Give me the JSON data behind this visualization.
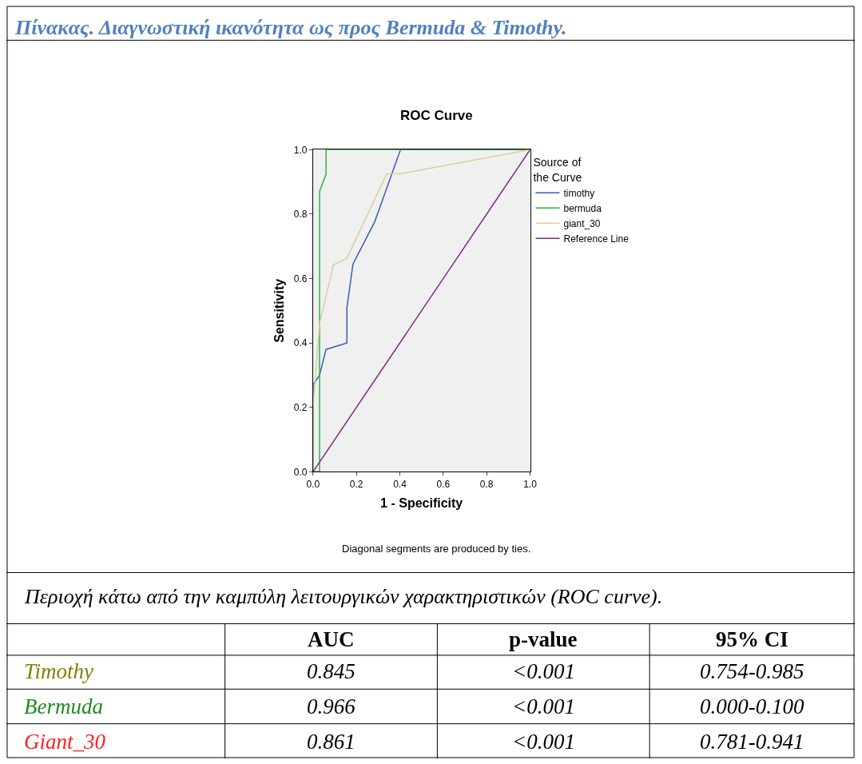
{
  "chart_data": {
    "type": "line",
    "title": "Πίνακας. Διαγνωστική ικανότητα ως προς Bermuda & Timothy.",
    "subtitle": "ROC Curve",
    "xlabel": "1 - Specificity",
    "ylabel": "Sensitivity",
    "legend_title": "Source of the Curve",
    "xlim": [
      0,
      1
    ],
    "ylim": [
      0,
      1
    ],
    "xticks": [
      {
        "value": 0,
        "label": "0.0"
      },
      0.2,
      0.4,
      0.6,
      0.8,
      {
        "value": 1,
        "label": "1.0"
      }
    ],
    "yticks": [
      {
        "value": 0,
        "label": "0.0"
      },
      0.2,
      0.4,
      0.6,
      0.8,
      {
        "value": 1,
        "label": "1.0"
      }
    ],
    "grid": false,
    "legend": "right",
    "marker": "none",
    "line_style": "solid",
    "series": [
      {
        "name": "timothy",
        "color": "#3b5bb5",
        "x": [
          0,
          0,
          0.03,
          0.06,
          0.156,
          0.156,
          0.184,
          0.284,
          0.403,
          1
        ],
        "values": [
          0,
          0.27,
          0.3,
          0.38,
          0.4,
          0.51,
          0.645,
          0.776,
          1,
          1
        ]
      },
      {
        "name": "bermuda",
        "color": "#2db34a",
        "x": [
          0,
          0.03,
          0.03,
          0.06,
          0.06,
          1
        ],
        "values": [
          0,
          0,
          0.87,
          0.925,
          1,
          1
        ]
      },
      {
        "name": "giant_30",
        "color": "#d8cf9e",
        "x": [
          0,
          0,
          0.03,
          0.094,
          0.156,
          0.34,
          0.4,
          1
        ],
        "values": [
          0,
          0.2,
          0.46,
          0.642,
          0.663,
          0.925,
          0.925,
          1
        ]
      },
      {
        "name": "Reference Line",
        "color": "#7b2a82",
        "x": [
          0,
          1
        ],
        "values": [
          0,
          1
        ]
      }
    ],
    "annotations": [
      "Diagonal segments are produced by ties.",
      "Περιοχή κάτω από την καμπύλη λειτουργικών χαρακτηριστικών (ROC curve).",
      "AUC",
      "p-value",
      "95% CI",
      "Timothy",
      "0.845",
      "<0.001",
      "0.754-0.985",
      "Bermuda",
      "0.966",
      "<0.001",
      "0.000-0.100",
      "Giant_30",
      "0.861",
      "<0.001",
      "0.781-0.941"
    ]
  }
}
